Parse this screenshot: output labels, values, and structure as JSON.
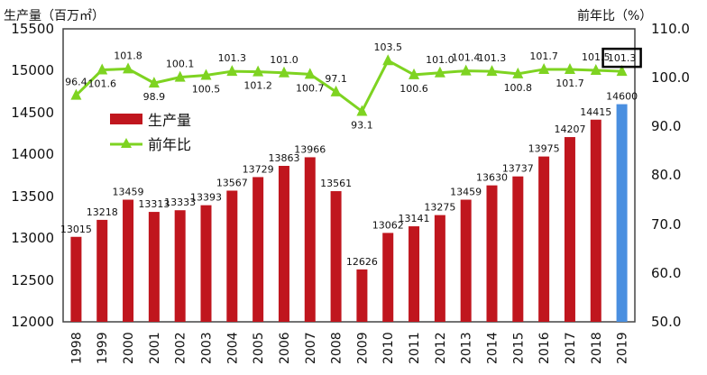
{
  "chart_data": {
    "type": "bar",
    "categories": [
      "1998",
      "1999",
      "2000",
      "2001",
      "2002",
      "2003",
      "2004",
      "2005",
      "2006",
      "2007",
      "2008",
      "2009",
      "2010",
      "2011",
      "2012",
      "2013",
      "2014",
      "2015",
      "2016",
      "2017",
      "2018",
      "2019"
    ],
    "series": [
      {
        "name": "生产量",
        "type": "bar",
        "axis": "left",
        "color": "#c0161e",
        "highlight_index": 21,
        "highlight_color": "#4a8fe0",
        "values": [
          13015,
          13218,
          13459,
          13313,
          13333,
          13393,
          13567,
          13729,
          13863,
          13966,
          13561,
          12626,
          13062,
          13141,
          13275,
          13459,
          13630,
          13737,
          13975,
          14207,
          14415,
          14600
        ]
      },
      {
        "name": "前年比",
        "type": "line",
        "axis": "right",
        "color": "#7ed321",
        "marker": "triangle",
        "values": [
          96.4,
          101.6,
          101.8,
          98.9,
          100.1,
          100.5,
          101.3,
          101.2,
          101.0,
          100.7,
          97.1,
          93.1,
          103.5,
          100.6,
          101.0,
          101.4,
          101.3,
          100.8,
          101.7,
          101.7,
          101.5,
          101.3
        ],
        "boxed_index": 21
      }
    ],
    "left_axis": {
      "title": "生产量（百万㎡）",
      "ylim": [
        12000,
        15500
      ],
      "ticks": [
        "12000",
        "12500",
        "13000",
        "13500",
        "14000",
        "14500",
        "15000",
        "15500"
      ]
    },
    "right_axis": {
      "title": "前年比（%）",
      "ylim": [
        50,
        110
      ],
      "ticks": [
        "50.0",
        "60.0",
        "70.0",
        "80.0",
        "90.0",
        "100.0",
        "110.0"
      ]
    },
    "grid": false,
    "legend": {
      "placement": "left-middle",
      "entries": [
        "生产量",
        "前年比"
      ]
    },
    "bar_value_labels": [
      "13015",
      "13218",
      "13459",
      "13313",
      "13333",
      "13393",
      "13567",
      "13729",
      "13863",
      "13966",
      "13561",
      "12626",
      "13062",
      "13141",
      "13275",
      "13459",
      "13630",
      "13737",
      "13975",
      "14207",
      "14415",
      "14600"
    ],
    "line_value_labels": [
      "96.4",
      "101.6",
      "101.8",
      "98.9",
      "100.1",
      "100.5",
      "101.3",
      "101.2",
      "101.0",
      "100.7",
      "97.1",
      "93.1",
      "103.5",
      "100.6",
      "101.0",
      "101.4",
      "101.3",
      "100.8",
      "101.7",
      "101.7",
      "101.5",
      "101.3"
    ]
  }
}
